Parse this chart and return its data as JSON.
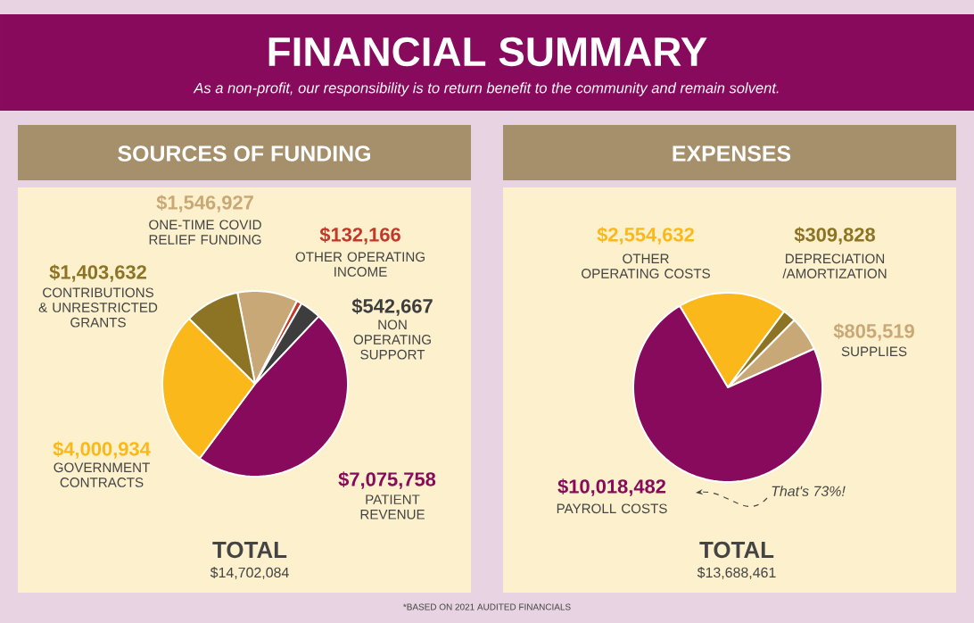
{
  "chart_data": [
    {
      "type": "pie",
      "title": "SOURCES OF FUNDING",
      "categories": [
        "ONE-TIME COVID RELIEF FUNDING",
        "OTHER OPERATING INCOME",
        "NON OPERATING SUPPORT",
        "PATIENT REVENUE",
        "GOVERNMENT CONTRACTS",
        "CONTRIBUTIONS & UNRESTRICTED GRANTS"
      ],
      "values": [
        1546927,
        132166,
        542667,
        7075758,
        4000934,
        1403632
      ],
      "colors": [
        "#c9a878",
        "#c0392b",
        "#3d3d3d",
        "#880a5c",
        "#fbb81a",
        "#8c7424"
      ],
      "value_labels": [
        "$1,546,927",
        "$132,166",
        "$542,667",
        "$7,075,758",
        "$4,000,934",
        "$1,403,632"
      ],
      "annotations": [
        "FINANCIAL SUMMARY",
        "As a non-profit, our responsibility is to return benefit to the community and remain solvent.",
        "TOTAL",
        "$14,702,084",
        "*BASED ON 2021 AUDITED FINANCIALS"
      ]
    },
    {
      "type": "pie",
      "title": "EXPENSES",
      "categories": [
        "OTHER OPERATING COSTS",
        "DEPRECIATION /AMORTIZATION",
        "SUPPLIES",
        "PAYROLL COSTS"
      ],
      "values": [
        2554632,
        309828,
        805519,
        10018482
      ],
      "colors": [
        "#fbb81a",
        "#8c7424",
        "#c9a878",
        "#880a5c"
      ],
      "value_labels": [
        "$2,554,632",
        "$309,828",
        "$805,519",
        "$10,018,482"
      ],
      "annotations": [
        "TOTAL",
        "$13,688,461",
        "That's 73%!"
      ]
    }
  ]
}
